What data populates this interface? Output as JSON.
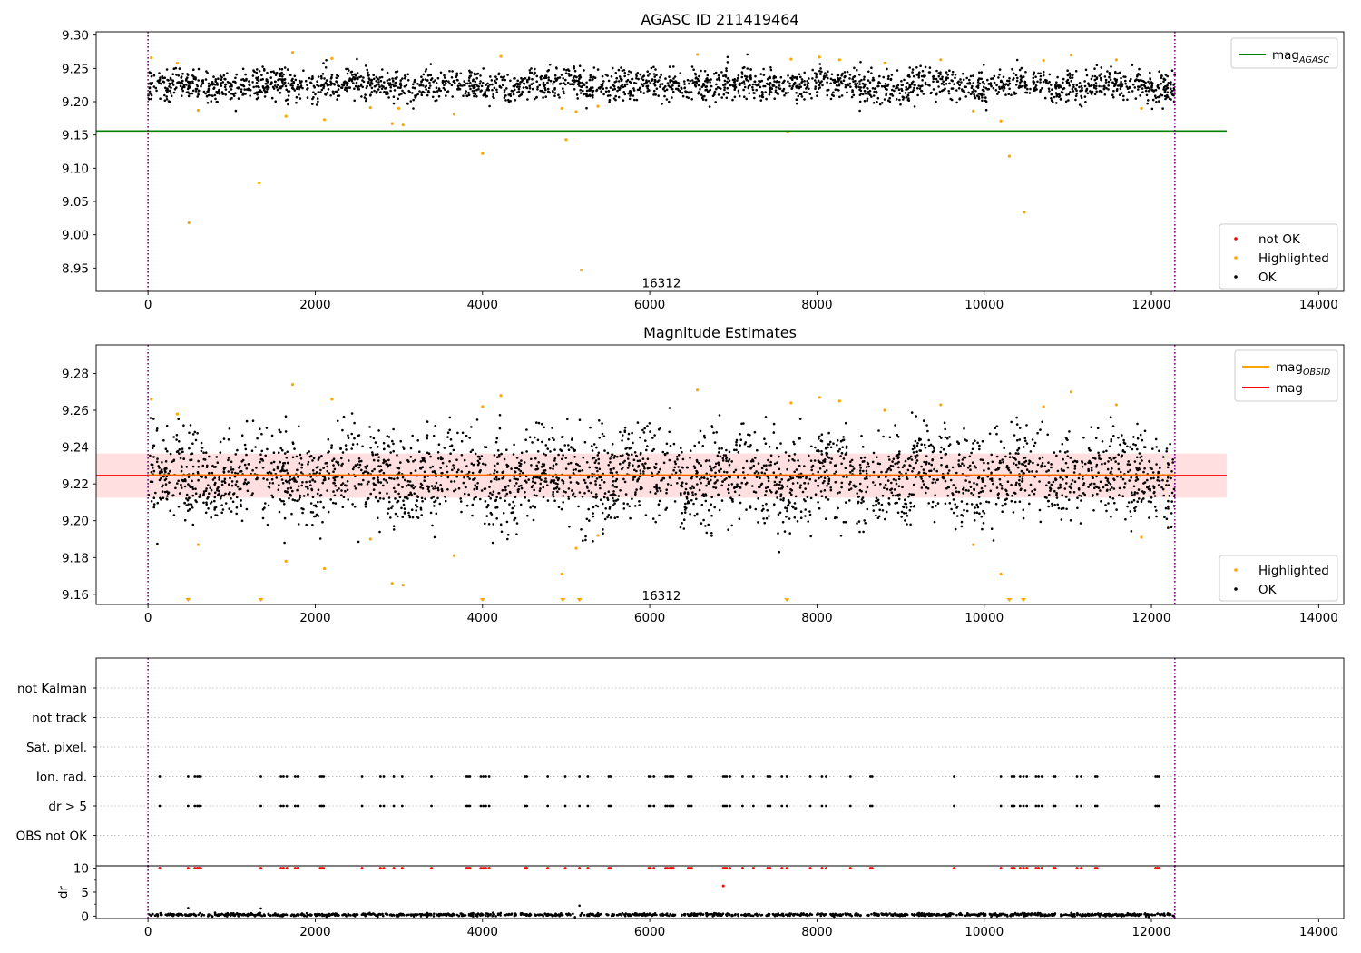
{
  "figure": {
    "colors": {
      "ok": "#000000",
      "highlighted": "#ffa500",
      "not_ok": "#ff0000",
      "mag_agasc": "#008000",
      "mag": "#ff0000",
      "mag_obsid": "#ffa500",
      "band": "#ffc0c0",
      "boundary": "#800080",
      "grid": "#b0b0b0"
    },
    "bottom_x_ticks": [
      "0",
      "2000",
      "4000",
      "6000",
      "8000",
      "10000",
      "12000",
      "14000"
    ]
  },
  "chart_data": [
    {
      "id": "top",
      "type": "scatter",
      "title": "AGASC ID 211419464",
      "xlim": [
        -620,
        14300
      ],
      "ylim": [
        8.915,
        9.305
      ],
      "x_ticks": [
        0,
        2000,
        4000,
        6000,
        8000,
        10000,
        12000,
        14000
      ],
      "x_tick_labels": [
        "0",
        "2000",
        "4000",
        "6000",
        "8000",
        "10000",
        "12000",
        "14000"
      ],
      "y_ticks": [
        8.95,
        9.0,
        9.05,
        9.1,
        9.15,
        9.2,
        9.25,
        9.3
      ],
      "y_tick_labels": [
        "8.95",
        "9.00",
        "9.05",
        "9.10",
        "9.15",
        "9.20",
        "9.25",
        "9.30"
      ],
      "obsid_boundaries": [
        0,
        12280
      ],
      "obsid_label": {
        "text": "16312",
        "x": 6140,
        "y": 8.928
      },
      "mag_agasc": {
        "value": 9.156,
        "x_range": [
          -620,
          12900
        ]
      },
      "ok_points": {
        "x_range": [
          0,
          12280
        ],
        "center": 9.225,
        "spread": 0.012
      },
      "highlighted": {
        "x": [
          40,
          350,
          490,
          600,
          1330,
          1650,
          1730,
          2110,
          2200,
          2660,
          2920,
          3000,
          3050,
          3660,
          4000,
          4220,
          4950,
          5000,
          5120,
          5180,
          5380,
          6570,
          7650,
          7690,
          8030,
          8270,
          8810,
          9480,
          9870,
          10200,
          10300,
          10480,
          10710,
          11040,
          11580,
          11880
        ],
        "y": [
          9.266,
          9.258,
          9.018,
          9.187,
          9.078,
          9.178,
          9.274,
          9.173,
          9.265,
          9.191,
          9.167,
          9.19,
          9.165,
          9.181,
          9.122,
          9.268,
          9.19,
          9.143,
          9.185,
          8.947,
          9.193,
          9.271,
          9.155,
          9.264,
          9.267,
          9.263,
          9.258,
          9.263,
          9.186,
          9.171,
          9.118,
          9.034,
          9.262,
          9.27,
          9.263,
          9.19
        ]
      },
      "legend_lines": [
        {
          "label": "mag",
          "subscript": "AGASC",
          "color": "#008000"
        }
      ],
      "legend_points": [
        {
          "label": "not OK",
          "color": "#ff0000"
        },
        {
          "label": "Highlighted",
          "color": "#ffa500"
        },
        {
          "label": "OK",
          "color": "#000000"
        }
      ]
    },
    {
      "id": "middle",
      "type": "scatter",
      "title": "Magnitude Estimates",
      "xlim": [
        -620,
        14300
      ],
      "ylim": [
        9.1545,
        9.2955
      ],
      "x_ticks": [
        0,
        2000,
        4000,
        6000,
        8000,
        10000,
        12000,
        14000
      ],
      "x_tick_labels": [
        "0",
        "2000",
        "4000",
        "6000",
        "8000",
        "10000",
        "12000",
        "14000"
      ],
      "y_ticks": [
        9.16,
        9.18,
        9.2,
        9.22,
        9.24,
        9.26,
        9.28
      ],
      "y_tick_labels": [
        "9.16",
        "9.18",
        "9.20",
        "9.22",
        "9.24",
        "9.26",
        "9.28"
      ],
      "obsid_boundaries": [
        0,
        12280
      ],
      "obsid_label": {
        "text": "16312",
        "x": 6140,
        "y": 9.1595
      },
      "mag": {
        "value": 9.2245,
        "x_range": [
          -620,
          12900
        ]
      },
      "mag_obsid": {
        "value": 9.2245,
        "x_range": [
          0,
          12280
        ]
      },
      "mag_band": [
        9.2125,
        9.2365
      ],
      "ok_points": {
        "x_range": [
          0,
          12280
        ],
        "center": 9.224,
        "spread": 0.012
      },
      "highlighted": {
        "x": [
          40,
          350,
          600,
          1650,
          1730,
          2110,
          2200,
          2660,
          2920,
          3050,
          3660,
          4000,
          4220,
          4950,
          5120,
          5380,
          6570,
          7690,
          8030,
          8270,
          8810,
          9480,
          9870,
          10200,
          10710,
          11040,
          11580,
          11880
        ],
        "y": [
          9.266,
          9.258,
          9.187,
          9.178,
          9.274,
          9.174,
          9.266,
          9.19,
          9.166,
          9.165,
          9.181,
          9.262,
          9.268,
          9.171,
          9.185,
          9.192,
          9.271,
          9.264,
          9.267,
          9.265,
          9.26,
          9.263,
          9.187,
          9.171,
          9.262,
          9.27,
          9.263,
          9.191
        ]
      },
      "below_range_markers": [
        480,
        1350,
        4000,
        4960,
        5160,
        7640,
        10300,
        10470
      ],
      "legend_lines": [
        {
          "label": "mag",
          "subscript": "OBSID",
          "color": "#ffa500"
        },
        {
          "label": "mag",
          "subscript": "",
          "color": "#ff0000"
        }
      ],
      "legend_points": [
        {
          "label": "Highlighted",
          "color": "#ffa500"
        },
        {
          "label": "OK",
          "color": "#000000"
        }
      ]
    },
    {
      "id": "flags",
      "type": "scatter",
      "xlim": [
        -620,
        14300
      ],
      "categories": [
        "not Kalman",
        "not track",
        "Sat. pixel.",
        "Ion. rad.",
        "dr > 5",
        "OBS not OK"
      ],
      "obsid_boundaries": [
        0,
        12280
      ],
      "flagged_x": [
        140,
        480,
        560,
        590,
        610,
        630,
        1350,
        1590,
        1620,
        1660,
        1760,
        1790,
        2060,
        2080,
        2100,
        2560,
        2780,
        2820,
        2940,
        3040,
        3390,
        3810,
        3830,
        3850,
        3980,
        4010,
        4040,
        4080,
        4510,
        4530,
        4780,
        4990,
        5160,
        5260,
        5510,
        5530,
        5990,
        6010,
        6050,
        6190,
        6210,
        6240,
        6260,
        6280,
        6460,
        6480,
        6500,
        6880,
        6900,
        6920,
        6960,
        7110,
        7240,
        7410,
        7440,
        7580,
        7640,
        7920,
        8060,
        8110,
        8400,
        8640,
        8660,
        9640,
        10200,
        10330,
        10360,
        10430,
        10470,
        10510,
        10620,
        10650,
        10690,
        10830,
        10850,
        11110,
        11160,
        11330,
        11350,
        12050,
        12070,
        12090
      ],
      "flag_rows": [
        "Ion. rad.",
        "dr > 5"
      ]
    },
    {
      "id": "dr",
      "type": "scatter",
      "ylabel": "dr",
      "xlim": [
        -620,
        14300
      ],
      "ylim": [
        -0.5,
        10.5
      ],
      "x_ticks": [
        0,
        2000,
        4000,
        6000,
        8000,
        10000,
        12000,
        14000
      ],
      "y_ticks": [
        0,
        5,
        10
      ],
      "y_tick_labels": [
        "0",
        "5",
        "10"
      ],
      "obsid_boundaries": [
        0,
        12280
      ],
      "ok_points": {
        "x_range": [
          0,
          12280
        ],
        "center": 0.3,
        "spread": 0.15
      },
      "extra_ok": [
        {
          "x": 480,
          "y": 1.7
        },
        {
          "x": 1350,
          "y": 1.6
        },
        {
          "x": 5160,
          "y": 2.2
        }
      ],
      "red_points": [
        {
          "x": 6880,
          "y": 6.3
        }
      ],
      "red_clipped_y": 10
    }
  ]
}
